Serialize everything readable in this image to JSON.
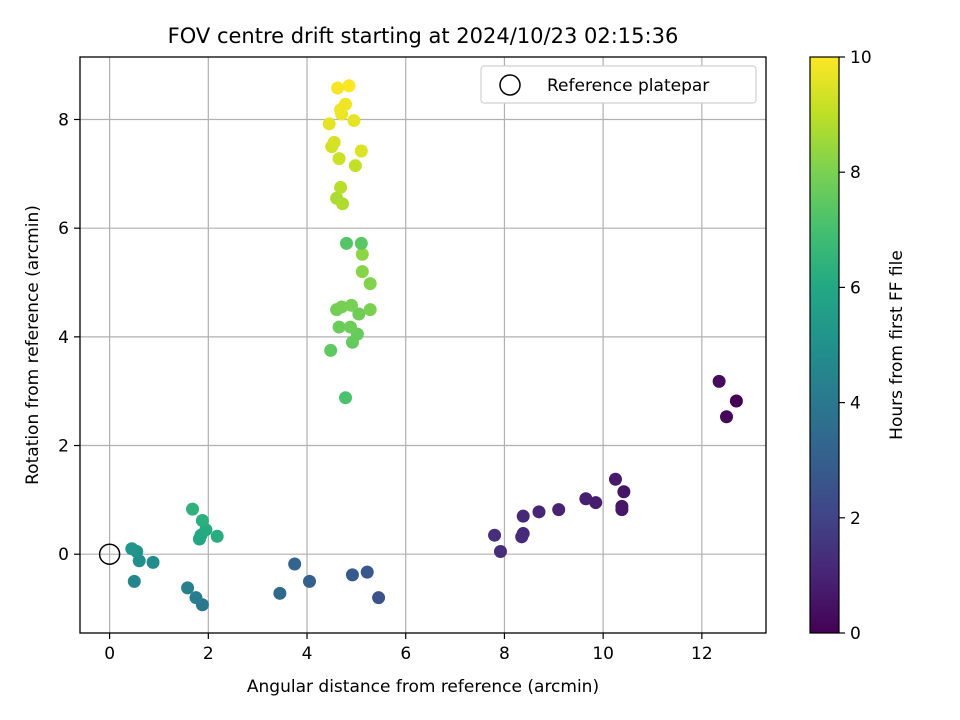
{
  "chart_data": {
    "type": "scatter",
    "title": "FOV centre drift starting at 2024/10/23 02:15:36",
    "xlabel": "Angular distance from reference (arcmin)",
    "ylabel": "Rotation from reference (arcmin)",
    "xlim": [
      -0.6,
      13.3
    ],
    "ylim": [
      -1.45,
      9.15
    ],
    "xticks": [
      0,
      2,
      4,
      6,
      8,
      10,
      12
    ],
    "yticks": [
      0,
      2,
      4,
      6,
      8
    ],
    "grid": true,
    "legend": {
      "placement": "top-right",
      "entries": [
        "Reference platepar"
      ]
    },
    "reference_point": {
      "x": 0,
      "y": 0,
      "label": "Reference platepar"
    },
    "colorbar": {
      "label": "Hours from first FF file",
      "range": [
        0,
        10
      ],
      "ticks": [
        0,
        2,
        4,
        6,
        8,
        10
      ],
      "colormap": "viridis"
    },
    "points": [
      {
        "x": 12.7,
        "y": 2.82,
        "c": 0.0
      },
      {
        "x": 12.5,
        "y": 2.53,
        "c": 0.15
      },
      {
        "x": 12.35,
        "y": 3.18,
        "c": 0.3
      },
      {
        "x": 10.42,
        "y": 1.15,
        "c": 0.5
      },
      {
        "x": 10.38,
        "y": 0.88,
        "c": 0.6
      },
      {
        "x": 10.38,
        "y": 0.82,
        "c": 0.65
      },
      {
        "x": 10.25,
        "y": 1.38,
        "c": 0.7
      },
      {
        "x": 9.85,
        "y": 0.95,
        "c": 0.8
      },
      {
        "x": 9.65,
        "y": 1.02,
        "c": 0.85
      },
      {
        "x": 9.1,
        "y": 0.82,
        "c": 0.95
      },
      {
        "x": 8.7,
        "y": 0.78,
        "c": 1.05
      },
      {
        "x": 8.38,
        "y": 0.7,
        "c": 1.1
      },
      {
        "x": 8.38,
        "y": 0.38,
        "c": 1.15
      },
      {
        "x": 8.35,
        "y": 0.32,
        "c": 1.2
      },
      {
        "x": 7.92,
        "y": 0.05,
        "c": 1.3
      },
      {
        "x": 7.8,
        "y": 0.35,
        "c": 1.35
      },
      {
        "x": 5.45,
        "y": -0.8,
        "c": 2.5
      },
      {
        "x": 5.22,
        "y": -0.33,
        "c": 2.7
      },
      {
        "x": 4.92,
        "y": -0.38,
        "c": 2.8
      },
      {
        "x": 4.05,
        "y": -0.5,
        "c": 3.0
      },
      {
        "x": 3.75,
        "y": -0.18,
        "c": 3.2
      },
      {
        "x": 3.45,
        "y": -0.72,
        "c": 3.4
      },
      {
        "x": 1.88,
        "y": -0.93,
        "c": 4.0
      },
      {
        "x": 1.75,
        "y": -0.8,
        "c": 4.2
      },
      {
        "x": 1.58,
        "y": -0.62,
        "c": 4.35
      },
      {
        "x": 0.5,
        "y": -0.5,
        "c": 4.6
      },
      {
        "x": 0.88,
        "y": -0.15,
        "c": 4.8
      },
      {
        "x": 0.6,
        "y": -0.12,
        "c": 4.95
      },
      {
        "x": 0.55,
        "y": 0.05,
        "c": 5.1
      },
      {
        "x": 0.45,
        "y": 0.1,
        "c": 5.2
      },
      {
        "x": 1.82,
        "y": 0.28,
        "c": 5.9
      },
      {
        "x": 1.85,
        "y": 0.35,
        "c": 6.0
      },
      {
        "x": 1.95,
        "y": 0.45,
        "c": 6.1
      },
      {
        "x": 2.18,
        "y": 0.33,
        "c": 6.2
      },
      {
        "x": 1.88,
        "y": 0.62,
        "c": 6.3
      },
      {
        "x": 1.68,
        "y": 0.83,
        "c": 6.4
      },
      {
        "x": 4.78,
        "y": 2.88,
        "c": 7.1
      },
      {
        "x": 4.48,
        "y": 3.75,
        "c": 7.5
      },
      {
        "x": 4.92,
        "y": 3.9,
        "c": 7.6
      },
      {
        "x": 5.02,
        "y": 4.05,
        "c": 7.65
      },
      {
        "x": 4.65,
        "y": 4.18,
        "c": 7.7
      },
      {
        "x": 4.88,
        "y": 4.18,
        "c": 7.75
      },
      {
        "x": 5.05,
        "y": 4.42,
        "c": 7.8
      },
      {
        "x": 4.6,
        "y": 4.5,
        "c": 7.85
      },
      {
        "x": 4.7,
        "y": 4.55,
        "c": 7.9
      },
      {
        "x": 4.9,
        "y": 4.58,
        "c": 7.95
      },
      {
        "x": 5.28,
        "y": 4.5,
        "c": 8.0
      },
      {
        "x": 5.28,
        "y": 4.98,
        "c": 8.1
      },
      {
        "x": 5.12,
        "y": 5.2,
        "c": 8.2
      },
      {
        "x": 5.12,
        "y": 5.52,
        "c": 8.3
      },
      {
        "x": 5.1,
        "y": 5.72,
        "c": 7.4
      },
      {
        "x": 4.8,
        "y": 5.72,
        "c": 7.3
      },
      {
        "x": 4.6,
        "y": 6.55,
        "c": 8.7
      },
      {
        "x": 4.72,
        "y": 6.45,
        "c": 8.8
      },
      {
        "x": 4.68,
        "y": 6.75,
        "c": 8.9
      },
      {
        "x": 4.98,
        "y": 7.15,
        "c": 9.1
      },
      {
        "x": 4.65,
        "y": 7.28,
        "c": 9.2
      },
      {
        "x": 4.5,
        "y": 7.5,
        "c": 9.3
      },
      {
        "x": 4.55,
        "y": 7.58,
        "c": 9.4
      },
      {
        "x": 5.1,
        "y": 7.42,
        "c": 9.45
      },
      {
        "x": 4.45,
        "y": 7.92,
        "c": 9.6
      },
      {
        "x": 4.95,
        "y": 7.98,
        "c": 9.65
      },
      {
        "x": 4.7,
        "y": 8.1,
        "c": 9.7
      },
      {
        "x": 4.68,
        "y": 8.18,
        "c": 9.75
      },
      {
        "x": 4.78,
        "y": 8.28,
        "c": 9.8
      },
      {
        "x": 4.62,
        "y": 8.58,
        "c": 9.9
      },
      {
        "x": 4.85,
        "y": 8.62,
        "c": 10.0
      }
    ]
  }
}
